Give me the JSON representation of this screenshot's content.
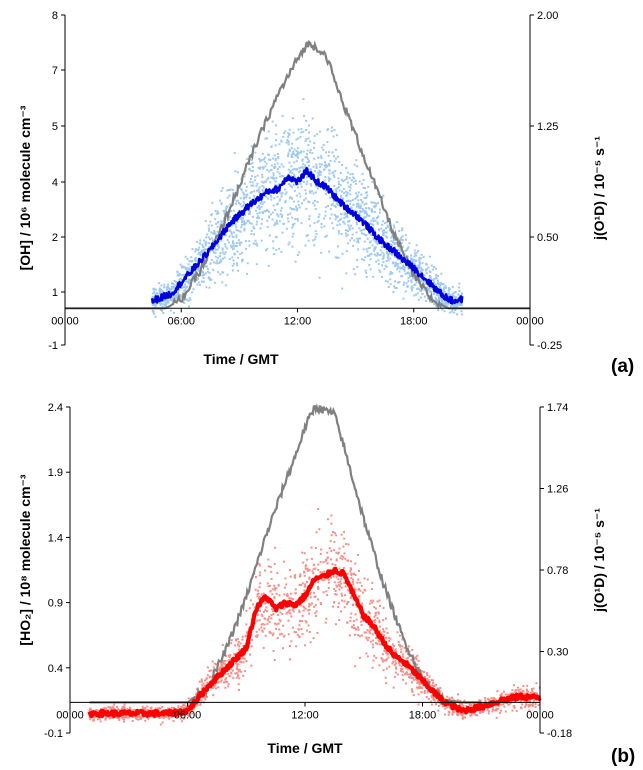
{
  "chart_data": [
    {
      "type": "scatter",
      "panel_label": "(a)",
      "xlabel": "Time / GMT",
      "ylabel": "[OH] / 10⁶ molecule cm⁻³",
      "ylabel_right": "j(O¹D) / 10⁻⁵ s⁻¹",
      "x_ticks": [
        "00:00",
        "06:00",
        "12:00",
        "18:00",
        "00:00"
      ],
      "y_ticks_left": [
        "-1",
        "1",
        "2",
        "4",
        "5",
        "7",
        "8"
      ],
      "y_ticks_right": [
        "-0.25",
        "0.50",
        "1.25",
        "2.00"
      ],
      "ylim": [
        -1,
        8
      ],
      "ylim_right": [
        -0.25,
        2.0
      ],
      "xlim_hours": [
        0,
        24
      ],
      "colors": {
        "scatter": "#9fcaf0",
        "mean": "#0000dd",
        "j": "#808080"
      },
      "series": [
        {
          "kind": "mean",
          "x": [
            4.5,
            5.5,
            6.5,
            7.5,
            8.5,
            9.5,
            10,
            10.5,
            11,
            11.5,
            12,
            12.5,
            13,
            13.5,
            14,
            14.5,
            15,
            15.5,
            16,
            16.5,
            17,
            17.5,
            18,
            18.5,
            19,
            19.5,
            20,
            20.5
          ],
          "y": [
            0.2,
            0.4,
            1.0,
            1.6,
            2.3,
            2.8,
            3.0,
            3.2,
            3.25,
            3.6,
            3.45,
            3.75,
            3.45,
            3.3,
            3.0,
            2.75,
            2.55,
            2.3,
            2.0,
            1.75,
            1.55,
            1.3,
            1.1,
            0.85,
            0.6,
            0.35,
            0.2,
            0.25
          ]
        },
        {
          "kind": "j",
          "x": [
            0,
            5.2,
            6,
            7,
            8,
            9,
            10,
            11,
            12,
            12.5,
            13,
            13.5,
            14,
            15,
            16,
            17,
            18,
            19,
            19.8,
            24
          ],
          "y": [
            0,
            0,
            0.06,
            0.26,
            0.52,
            0.84,
            1.16,
            1.46,
            1.7,
            1.8,
            1.78,
            1.72,
            1.52,
            1.18,
            0.84,
            0.5,
            0.22,
            0.05,
            0,
            0
          ]
        },
        {
          "kind": "scatter",
          "x_range": [
            4.5,
            20.5
          ],
          "y_range": [
            -0.3,
            7.0
          ]
        }
      ]
    },
    {
      "type": "scatter",
      "panel_label": "(b)",
      "xlabel": "Time / GMT",
      "ylabel": "[HO₂] / 10⁸ molecule cm⁻³",
      "ylabel_right": "j(O¹D) / 10⁻⁵ s⁻¹",
      "x_ticks": [
        "00:00",
        "06:00",
        "12:00",
        "18:00",
        "00:00"
      ],
      "y_ticks_left": [
        "-0.1",
        "0.4",
        "0.9",
        "1.4",
        "1.9",
        "2.4"
      ],
      "y_ticks_right": [
        "-0.18",
        "0.30",
        "0.78",
        "1.26",
        "1.74"
      ],
      "ylim": [
        -0.1,
        2.4
      ],
      "ylim_right": [
        -0.18,
        1.74
      ],
      "xlim_hours": [
        0,
        24
      ],
      "colors": {
        "scatter": "#f4908a",
        "mean": "#ff0000",
        "j": "#808080"
      },
      "series": [
        {
          "kind": "mean",
          "x": [
            1,
            3,
            5,
            6,
            7,
            8,
            9,
            9.5,
            10,
            10.5,
            11,
            11.5,
            12,
            12.5,
            13,
            13.5,
            14,
            14.5,
            15,
            15.5,
            16,
            16.5,
            17,
            17.5,
            18,
            19,
            20,
            21,
            22,
            23,
            24
          ],
          "y": [
            0.05,
            0.05,
            0.05,
            0.07,
            0.25,
            0.4,
            0.55,
            0.85,
            0.95,
            0.85,
            0.9,
            0.88,
            0.95,
            1.08,
            1.1,
            1.15,
            1.12,
            0.95,
            0.8,
            0.72,
            0.6,
            0.5,
            0.45,
            0.38,
            0.3,
            0.15,
            0.07,
            0.1,
            0.15,
            0.18,
            0.17
          ]
        },
        {
          "kind": "j",
          "x": [
            1,
            6,
            7,
            8,
            9,
            10,
            11,
            11.5,
            12,
            12.5,
            13,
            13.5,
            14,
            15,
            16,
            17,
            18,
            19,
            20,
            21
          ],
          "y": [
            0,
            0,
            0.08,
            0.32,
            0.62,
            0.98,
            1.3,
            1.45,
            1.62,
            1.74,
            1.72,
            1.7,
            1.5,
            1.08,
            0.7,
            0.38,
            0.14,
            0.02,
            0,
            0
          ]
        },
        {
          "kind": "scatter",
          "x_range": [
            1,
            24
          ],
          "y_range": [
            -0.05,
            2.1
          ]
        }
      ]
    }
  ]
}
